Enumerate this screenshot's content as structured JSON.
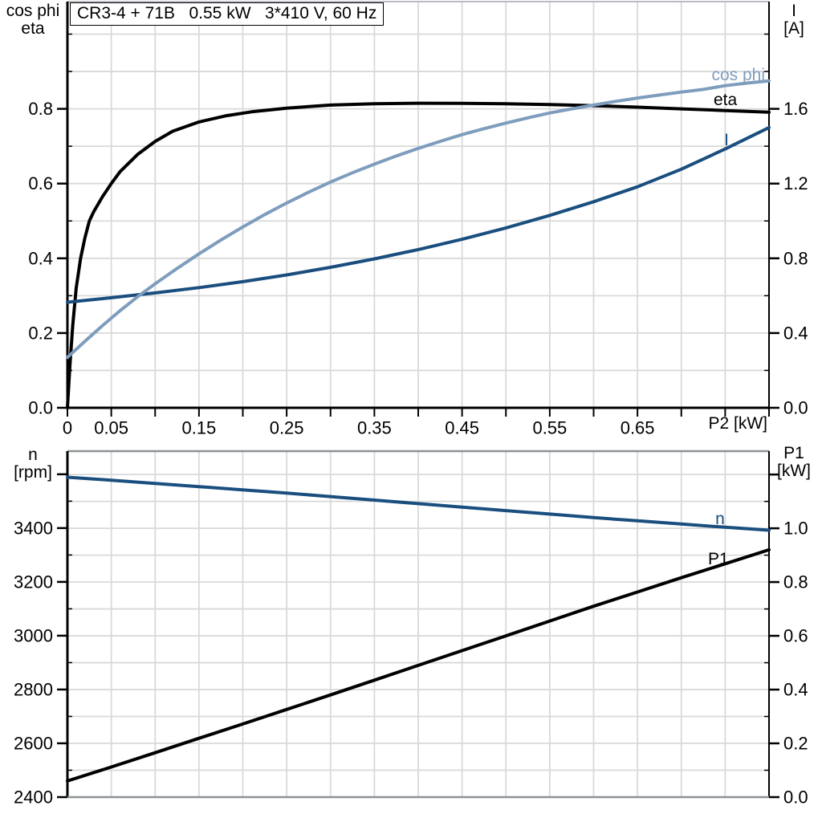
{
  "colors": {
    "grid": "#d9d9d9",
    "axis": "#000000",
    "frame_gray": "#8c9196",
    "frame_light": "#b9bdc1",
    "black_curve": "#000000",
    "light_blue_curve": "#7e9dbd",
    "dark_blue_curve": "#1a4e7e"
  },
  "chart_data": [
    {
      "id": "upper-chart",
      "type": "line",
      "title": "CR3-4 + 71B   0.55 kW   3*410 V, 60 Hz",
      "xlabel": "P2 [kW]",
      "x_range": [
        0,
        0.8
      ],
      "x_minor_step": 0.05,
      "x_tick_values": [
        0,
        0.05,
        0.15,
        0.25,
        0.35,
        0.45,
        0.55,
        0.65
      ],
      "x_tick_labels": [
        "0",
        "0.05",
        "0.15",
        "0.25",
        "0.35",
        "0.45",
        "0.55",
        "0.65"
      ],
      "grid": {
        "x_step": 0.05,
        "y_step": 0.1,
        "y_axis": "left"
      },
      "left_axis": {
        "title_lines": [
          "cos phi",
          "eta"
        ],
        "range": [
          0,
          1.087
        ],
        "major_ticks": [
          {
            "v": 0.0,
            "t": "0.0"
          },
          {
            "v": 0.2,
            "t": "0.2"
          },
          {
            "v": 0.4,
            "t": "0.4"
          },
          {
            "v": 0.6,
            "t": "0.6"
          },
          {
            "v": 0.8,
            "t": "0.8"
          }
        ],
        "minor_values": [
          0.1,
          0.3,
          0.5,
          0.7,
          0.9,
          1.0
        ]
      },
      "right_axis": {
        "title_lines": [
          "I",
          "[A]"
        ],
        "range": [
          0,
          2.174
        ],
        "major_ticks": [
          {
            "v": 0.0,
            "t": "0.0"
          },
          {
            "v": 0.4,
            "t": "0.4"
          },
          {
            "v": 0.8,
            "t": "0.8"
          },
          {
            "v": 1.2,
            "t": "1.2"
          },
          {
            "v": 1.6,
            "t": "1.6"
          }
        ],
        "minor_values": [
          0.2,
          0.6,
          1.0,
          1.4,
          1.8,
          2.0
        ]
      },
      "series": [
        {
          "name": "eta",
          "label": "eta",
          "axis": "left",
          "color": "#000000",
          "width": 4,
          "points": [
            [
              0,
              0
            ],
            [
              0.003,
              0.12
            ],
            [
              0.006,
              0.22
            ],
            [
              0.01,
              0.32
            ],
            [
              0.015,
              0.4
            ],
            [
              0.02,
              0.455
            ],
            [
              0.025,
              0.5
            ],
            [
              0.03,
              0.525
            ],
            [
              0.04,
              0.565
            ],
            [
              0.05,
              0.6
            ],
            [
              0.06,
              0.632
            ],
            [
              0.08,
              0.678
            ],
            [
              0.1,
              0.713
            ],
            [
              0.12,
              0.74
            ],
            [
              0.15,
              0.765
            ],
            [
              0.18,
              0.781
            ],
            [
              0.21,
              0.792
            ],
            [
              0.25,
              0.802
            ],
            [
              0.3,
              0.81
            ],
            [
              0.35,
              0.8135
            ],
            [
              0.4,
              0.815
            ],
            [
              0.45,
              0.8145
            ],
            [
              0.5,
              0.8135
            ],
            [
              0.55,
              0.8115
            ],
            [
              0.6,
              0.8085
            ],
            [
              0.65,
              0.8045
            ],
            [
              0.7,
              0.8
            ],
            [
              0.75,
              0.7955
            ],
            [
              0.8,
              0.791
            ]
          ]
        },
        {
          "name": "I",
          "label": "I",
          "axis": "right",
          "color": "#1a4e7e",
          "width": 4,
          "points": [
            [
              0,
              0.565
            ],
            [
              0.05,
              0.589
            ],
            [
              0.1,
              0.615
            ],
            [
              0.15,
              0.643
            ],
            [
              0.2,
              0.675
            ],
            [
              0.25,
              0.711
            ],
            [
              0.3,
              0.752
            ],
            [
              0.35,
              0.797
            ],
            [
              0.4,
              0.847
            ],
            [
              0.45,
              0.902
            ],
            [
              0.5,
              0.963
            ],
            [
              0.55,
              1.03
            ],
            [
              0.6,
              1.103
            ],
            [
              0.65,
              1.183
            ],
            [
              0.7,
              1.277
            ],
            [
              0.75,
              1.385
            ],
            [
              0.8,
              1.5
            ]
          ]
        },
        {
          "name": "cos phi",
          "label": "cos phi",
          "axis": "left",
          "color": "#7e9dbd",
          "width": 4,
          "points": [
            [
              0,
              0.135
            ],
            [
              0.02,
              0.178
            ],
            [
              0.04,
              0.22
            ],
            [
              0.06,
              0.26
            ],
            [
              0.08,
              0.297
            ],
            [
              0.1,
              0.332
            ],
            [
              0.125,
              0.373
            ],
            [
              0.15,
              0.412
            ],
            [
              0.175,
              0.449
            ],
            [
              0.2,
              0.484
            ],
            [
              0.225,
              0.517
            ],
            [
              0.25,
              0.548
            ],
            [
              0.275,
              0.577
            ],
            [
              0.3,
              0.604
            ],
            [
              0.325,
              0.629
            ],
            [
              0.35,
              0.652
            ],
            [
              0.375,
              0.674
            ],
            [
              0.4,
              0.694
            ],
            [
              0.425,
              0.713
            ],
            [
              0.45,
              0.731
            ],
            [
              0.475,
              0.747
            ],
            [
              0.5,
              0.762
            ],
            [
              0.525,
              0.776
            ],
            [
              0.55,
              0.789
            ],
            [
              0.575,
              0.8
            ],
            [
              0.6,
              0.81
            ],
            [
              0.625,
              0.82
            ],
            [
              0.65,
              0.829
            ],
            [
              0.675,
              0.837
            ],
            [
              0.7,
              0.845
            ],
            [
              0.725,
              0.852
            ],
            [
              0.75,
              0.862
            ],
            [
              0.775,
              0.869
            ],
            [
              0.8,
              0.875
            ]
          ]
        }
      ]
    },
    {
      "id": "lower-chart",
      "type": "line",
      "x_range": [
        0,
        0.8
      ],
      "x_minor_step": 0.05,
      "x_tick_values": [],
      "x_tick_labels": [],
      "grid": {
        "x_step": 0.05,
        "y_step": 0.1,
        "y_axis": "right"
      },
      "left_axis": {
        "title_lines": [
          "n",
          "[rpm]"
        ],
        "range": [
          2400,
          3686
        ],
        "major_ticks": [
          {
            "v": 2400,
            "t": "2400"
          },
          {
            "v": 2600,
            "t": "2600"
          },
          {
            "v": 2800,
            "t": "2800"
          },
          {
            "v": 3000,
            "t": "3000"
          },
          {
            "v": 3200,
            "t": "3200"
          },
          {
            "v": 3400,
            "t": "3400"
          },
          {
            "v": 3600,
            "t": ""
          }
        ],
        "minor_values": [
          2500,
          2700,
          2900,
          3100,
          3300,
          3500
        ]
      },
      "right_axis": {
        "title_lines": [
          "P1",
          "[kW]"
        ],
        "range": [
          0,
          1.287
        ],
        "major_ticks": [
          {
            "v": 0.0,
            "t": "0.0"
          },
          {
            "v": 0.2,
            "t": "0.2"
          },
          {
            "v": 0.4,
            "t": "0.4"
          },
          {
            "v": 0.6,
            "t": "0.6"
          },
          {
            "v": 0.8,
            "t": "0.8"
          },
          {
            "v": 1.0,
            "t": "1.0"
          },
          {
            "v": 1.2,
            "t": ""
          }
        ],
        "minor_values": [
          0.1,
          0.3,
          0.5,
          0.7,
          0.9,
          1.1
        ]
      },
      "series": [
        {
          "name": "n",
          "label": "n",
          "axis": "left",
          "color": "#1a4e7e",
          "width": 4,
          "points": [
            [
              0,
              3589
            ],
            [
              0.05,
              3578
            ],
            [
              0.1,
              3566
            ],
            [
              0.15,
              3554
            ],
            [
              0.2,
              3542
            ],
            [
              0.25,
              3530
            ],
            [
              0.3,
              3517
            ],
            [
              0.35,
              3504
            ],
            [
              0.4,
              3491
            ],
            [
              0.45,
              3478
            ],
            [
              0.5,
              3465
            ],
            [
              0.55,
              3452
            ],
            [
              0.6,
              3439
            ],
            [
              0.65,
              3427
            ],
            [
              0.7,
              3415
            ],
            [
              0.75,
              3403
            ],
            [
              0.8,
              3392
            ]
          ]
        },
        {
          "name": "P1",
          "label": "P1",
          "axis": "right",
          "color": "#000000",
          "width": 4,
          "points": [
            [
              0,
              0.06
            ],
            [
              0.05,
              0.112
            ],
            [
              0.1,
              0.165
            ],
            [
              0.15,
              0.219
            ],
            [
              0.2,
              0.272
            ],
            [
              0.25,
              0.326
            ],
            [
              0.3,
              0.38
            ],
            [
              0.35,
              0.435
            ],
            [
              0.4,
              0.49
            ],
            [
              0.45,
              0.545
            ],
            [
              0.5,
              0.6
            ],
            [
              0.55,
              0.655
            ],
            [
              0.6,
              0.71
            ],
            [
              0.65,
              0.763
            ],
            [
              0.7,
              0.816
            ],
            [
              0.75,
              0.868
            ],
            [
              0.8,
              0.92
            ]
          ]
        }
      ]
    }
  ]
}
